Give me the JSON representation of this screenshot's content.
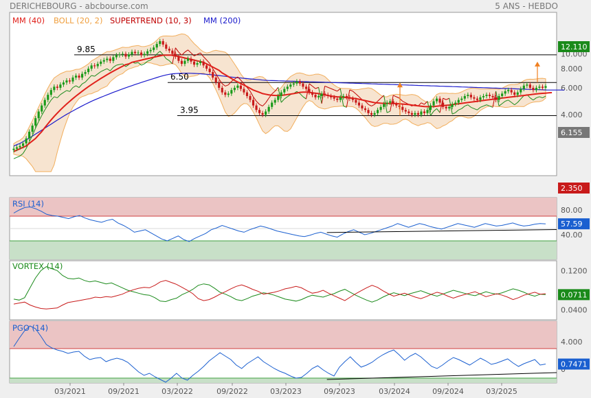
{
  "header": {
    "left": "DERICHEBOURG - abcbourse.com",
    "right": "5 ANS - HEBDO"
  },
  "legend": [
    {
      "label": "MM (40)",
      "color": "#e0201a"
    },
    {
      "label": "BOLL (20, 2)",
      "color": "#f0a040"
    },
    {
      "label": "SUPERTREND (10, 3)",
      "color": "#c00000"
    },
    {
      "label": "MM (200)",
      "color": "#1a1acc"
    }
  ],
  "colors": {
    "candle_up": "#1a9a1a",
    "candle_down": "#c81a1a",
    "rsi": "#1a5fd0",
    "vortex_plus": "#1a8a1a",
    "vortex_minus": "#c81a1a",
    "pgo": "#1a5fd0",
    "last_value_green": "#1a8a1a",
    "last_value_grey": "#777777",
    "last_value_red": "#c81a1a",
    "last_value_blue": "#1a5fd0"
  },
  "x_ticks": [
    "03/2021",
    "09/2021",
    "03/2022",
    "09/2022",
    "03/2023",
    "09/2023",
    "03/2024",
    "09/2024",
    "03/2025"
  ],
  "chart_data": [
    {
      "name": "price",
      "type": "candlestick",
      "scale": "log",
      "ylim": [
        1.6,
        15.5
      ],
      "ticks": [
        "10.000",
        "8.000",
        "6.000",
        "4.000"
      ],
      "tags": [
        {
          "text": "12.110",
          "type": "green"
        },
        {
          "text": "6.155",
          "type": "grey"
        },
        {
          "text": "2.350",
          "type": "red"
        }
      ],
      "levels": [
        {
          "label": "9.85",
          "value": 9.85
        },
        {
          "label": "6.50",
          "value": 6.5
        },
        {
          "label": "3.95",
          "value": 3.95
        }
      ],
      "close": [
        2.4,
        2.45,
        2.5,
        2.6,
        2.8,
        3.1,
        3.4,
        3.8,
        4.2,
        4.6,
        5.0,
        5.4,
        5.8,
        6.1,
        6.0,
        6.3,
        6.5,
        6.7,
        6.6,
        7.0,
        7.2,
        7.0,
        7.4,
        7.6,
        8.0,
        8.4,
        8.3,
        8.6,
        8.9,
        9.1,
        9.3,
        9.0,
        9.5,
        9.8,
        9.9,
        10.0,
        9.6,
        9.9,
        10.3,
        10.1,
        10.2,
        9.8,
        10.0,
        10.4,
        10.6,
        11.0,
        11.6,
        12.1,
        11.5,
        10.8,
        10.5,
        10.0,
        9.6,
        9.0,
        8.6,
        9.0,
        9.3,
        8.9,
        8.5,
        8.7,
        8.9,
        8.4,
        8.0,
        7.6,
        7.0,
        6.5,
        6.0,
        5.6,
        5.4,
        5.5,
        5.8,
        6.0,
        6.2,
        5.9,
        5.6,
        5.3,
        5.0,
        4.6,
        4.3,
        4.1,
        4.0,
        4.2,
        4.5,
        4.8,
        5.0,
        5.3,
        5.6,
        5.9,
        6.1,
        6.3,
        6.4,
        6.6,
        6.4,
        6.1,
        5.9,
        5.6,
        5.4,
        5.2,
        5.3,
        5.5,
        5.4,
        5.3,
        5.2,
        5.1,
        5.0,
        5.2,
        5.3,
        5.2,
        5.1,
        5.0,
        4.8,
        4.6,
        4.4,
        4.3,
        4.1,
        4.0,
        4.1,
        4.3,
        4.5,
        4.7,
        4.8,
        4.9,
        4.7,
        4.6,
        4.5,
        4.3,
        4.2,
        4.1,
        4.0,
        4.1,
        4.0,
        4.2,
        4.1,
        4.3,
        4.6,
        4.9,
        5.1,
        4.8,
        4.5,
        4.4,
        4.5,
        4.7,
        4.8,
        5.0,
        5.1,
        5.3,
        5.4,
        5.2,
        5.1,
        5.0,
        5.2,
        5.3,
        5.4,
        5.3,
        5.2,
        5.0,
        5.3,
        5.5,
        5.7,
        5.8,
        5.6,
        5.4,
        5.6,
        5.9,
        6.2,
        6.3,
        6.0,
        5.8,
        6.0,
        6.1,
        6.0,
        6.155
      ],
      "mm40": [
        2.3,
        2.35,
        2.4,
        2.45,
        2.5,
        2.6,
        2.7,
        2.8,
        2.95,
        3.1,
        3.3,
        3.5,
        3.7,
        3.9,
        4.1,
        4.3,
        4.5,
        4.7,
        4.9,
        5.1,
        5.3,
        5.5,
        5.7,
        5.9,
        6.1,
        6.3,
        6.5,
        6.7,
        6.9,
        7.1,
        7.3,
        7.5,
        7.7,
        7.9,
        8.1,
        8.3,
        8.5,
        8.6,
        8.8,
        8.9,
        9.0,
        9.1,
        9.2,
        9.3,
        9.4,
        9.5,
        9.6,
        9.7,
        9.8,
        9.8,
        9.8,
        9.8,
        9.7,
        9.6,
        9.5,
        9.4,
        9.3,
        9.2,
        9.1,
        9.0,
        8.9,
        8.8,
        8.6,
        8.4,
        8.2,
        8.0,
        7.8,
        7.5,
        7.3,
        7.1,
        6.9,
        6.7,
        6.55,
        6.4,
        6.25,
        6.1,
        5.95,
        5.8,
        5.7,
        5.6,
        5.5,
        5.45,
        5.4,
        5.37,
        5.35,
        5.35,
        5.36,
        5.38,
        5.42,
        5.46,
        5.5,
        5.55,
        5.6,
        5.62,
        5.62,
        5.6,
        5.57,
        5.53,
        5.5,
        5.45,
        5.4,
        5.35,
        5.3,
        5.27,
        5.24,
        5.22,
        5.2,
        5.18,
        5.16,
        5.13,
        5.1,
        5.05,
        5.0,
        4.95,
        4.9,
        4.85,
        4.8,
        4.78,
        4.76,
        4.75,
        4.74,
        4.74,
        4.74,
        4.73,
        4.72,
        4.7,
        4.68,
        4.66,
        4.63,
        4.6,
        4.57,
        4.55,
        4.53,
        4.52,
        4.52,
        4.53,
        4.55,
        4.57,
        4.59,
        4.61,
        4.63,
        4.66,
        4.69,
        4.72,
        4.75,
        4.78,
        4.81,
        4.84,
        4.87,
        4.9,
        4.93,
        4.96,
        4.99,
        5.02,
        5.05,
        5.08,
        5.11,
        5.14,
        5.17,
        5.2,
        5.23,
        5.26,
        5.29,
        5.32,
        5.35,
        5.38,
        5.41,
        5.44,
        5.47,
        5.5,
        5.52,
        5.54,
        5.56,
        5.58
      ],
      "mm200": [
        2.5,
        2.55,
        2.6,
        2.67,
        2.74,
        2.82,
        2.9,
        2.99,
        3.08,
        3.17,
        3.27,
        3.37,
        3.47,
        3.58,
        3.69,
        3.8,
        3.91,
        4.02,
        4.13,
        4.24,
        4.35,
        4.46,
        4.57,
        4.68,
        4.79,
        4.9,
        5.0,
        5.1,
        5.2,
        5.3,
        5.4,
        5.5,
        5.6,
        5.7,
        5.8,
        5.9,
        6.0,
        6.1,
        6.2,
        6.3,
        6.4,
        6.5,
        6.6,
        6.7,
        6.8,
        6.9,
        7.0,
        7.1,
        7.2,
        7.28,
        7.35,
        7.4,
        7.43,
        7.45,
        7.46,
        7.47,
        7.47,
        7.46,
        7.45,
        7.43,
        7.41,
        7.38,
        7.35,
        7.32,
        7.29,
        7.25,
        7.21,
        7.17,
        7.13,
        7.09,
        7.05,
        7.01,
        6.98,
        6.95,
        6.92,
        6.89,
        6.86,
        6.83,
        6.8,
        6.77,
        6.74,
        6.72,
        6.7,
        6.69,
        6.68,
        6.67,
        6.66,
        6.65,
        6.64,
        6.63,
        6.62,
        6.61,
        6.6,
        6.59,
        6.58,
        6.57,
        6.56,
        6.55,
        6.54,
        6.53,
        6.52,
        6.51,
        6.5,
        6.49,
        6.48,
        6.47,
        6.46,
        6.45,
        6.44,
        6.43,
        6.42,
        6.41,
        6.4,
        6.39,
        6.38,
        6.37,
        6.36,
        6.35,
        6.34,
        6.33,
        6.32,
        6.31,
        6.3,
        6.29,
        6.28,
        6.27,
        6.26,
        6.25,
        6.24,
        6.23,
        6.22,
        6.21,
        6.2,
        6.19,
        6.18,
        6.17,
        6.16,
        6.15,
        6.14,
        6.13,
        6.12,
        6.11,
        6.1,
        6.09,
        6.08,
        6.07,
        6.06,
        6.05,
        6.04,
        6.03,
        6.02,
        6.01,
        6.0,
        5.99,
        5.98,
        5.97,
        5.96,
        5.95,
        5.94,
        5.93,
        5.92,
        5.91,
        5.9,
        5.89,
        5.88,
        5.87,
        5.86,
        5.85,
        5.84,
        5.83,
        5.82,
        5.81,
        5.8,
        5.8,
        5.8,
        5.8,
        5.8,
        5.8
      ]
    },
    {
      "name": "rsi",
      "type": "line",
      "label": "RSI (14)",
      "ylim": [
        0,
        100
      ],
      "ticks": [
        "80.00",
        "40.00"
      ],
      "bands": [
        70,
        30
      ],
      "tag": "57.59",
      "trend": [
        [
          0.58,
          43.5
        ],
        [
          1.0,
          48.3
        ]
      ],
      "values": [
        75,
        80,
        84,
        85,
        82,
        78,
        73,
        71,
        70,
        68,
        66,
        69,
        71,
        67,
        64,
        62,
        60,
        63,
        65,
        59,
        55,
        50,
        44,
        46,
        48,
        43,
        38,
        33,
        30,
        34,
        38,
        32,
        29,
        34,
        38,
        42,
        48,
        51,
        55,
        52,
        49,
        46,
        44,
        48,
        51,
        54,
        52,
        49,
        46,
        44,
        42,
        40,
        38,
        37,
        39,
        42,
        44,
        41,
        38,
        36,
        41,
        45,
        48,
        44,
        40,
        42,
        45,
        48,
        51,
        54,
        58,
        55,
        52,
        55,
        58,
        56,
        53,
        51,
        49,
        52,
        55,
        58,
        56,
        54,
        52,
        55,
        58,
        56,
        54,
        55,
        57,
        59,
        56,
        54,
        55,
        57,
        58,
        57.59
      ]
    },
    {
      "name": "vortex",
      "type": "line",
      "label": "VORTEX (14)",
      "ylim": [
        0.02,
        0.14
      ],
      "ticks": [
        "0.1200",
        "0.0400"
      ],
      "tag": "0.0711",
      "series": [
        {
          "values": [
            0.062,
            0.06,
            0.065,
            0.085,
            0.105,
            0.12,
            0.128,
            0.124,
            0.12,
            0.11,
            0.104,
            0.103,
            0.105,
            0.1,
            0.097,
            0.099,
            0.096,
            0.093,
            0.095,
            0.09,
            0.085,
            0.08,
            0.077,
            0.074,
            0.071,
            0.07,
            0.065,
            0.058,
            0.057,
            0.061,
            0.064,
            0.071,
            0.076,
            0.082,
            0.09,
            0.093,
            0.091,
            0.084,
            0.076,
            0.072,
            0.067,
            0.061,
            0.059,
            0.063,
            0.068,
            0.071,
            0.075,
            0.073,
            0.07,
            0.066,
            0.062,
            0.06,
            0.058,
            0.061,
            0.066,
            0.07,
            0.068,
            0.066,
            0.07,
            0.073,
            0.078,
            0.082,
            0.076,
            0.07,
            0.065,
            0.06,
            0.056,
            0.06,
            0.066,
            0.071,
            0.075,
            0.072,
            0.069,
            0.073,
            0.076,
            0.079,
            0.075,
            0.071,
            0.068,
            0.072,
            0.076,
            0.08,
            0.077,
            0.074,
            0.071,
            0.069,
            0.073,
            0.077,
            0.074,
            0.072,
            0.075,
            0.079,
            0.083,
            0.08,
            0.076,
            0.071,
            0.068,
            0.072,
            0.0711
          ]
        },
        {
          "values": [
            0.052,
            0.054,
            0.056,
            0.05,
            0.046,
            0.043,
            0.042,
            0.043,
            0.044,
            0.05,
            0.055,
            0.057,
            0.059,
            0.061,
            0.063,
            0.066,
            0.065,
            0.067,
            0.066,
            0.069,
            0.072,
            0.077,
            0.081,
            0.084,
            0.086,
            0.085,
            0.09,
            0.097,
            0.1,
            0.096,
            0.092,
            0.086,
            0.08,
            0.073,
            0.063,
            0.059,
            0.061,
            0.066,
            0.072,
            0.077,
            0.083,
            0.088,
            0.091,
            0.087,
            0.082,
            0.078,
            0.072,
            0.074,
            0.076,
            0.079,
            0.083,
            0.085,
            0.088,
            0.085,
            0.079,
            0.074,
            0.076,
            0.08,
            0.074,
            0.069,
            0.064,
            0.059,
            0.066,
            0.073,
            0.079,
            0.085,
            0.09,
            0.086,
            0.079,
            0.073,
            0.068,
            0.071,
            0.074,
            0.07,
            0.066,
            0.063,
            0.067,
            0.072,
            0.076,
            0.073,
            0.068,
            0.064,
            0.068,
            0.071,
            0.074,
            0.077,
            0.072,
            0.067,
            0.07,
            0.073,
            0.07,
            0.066,
            0.061,
            0.065,
            0.07,
            0.073,
            0.076,
            0.072,
            0.073
          ]
        }
      ]
    },
    {
      "name": "pgo",
      "type": "line",
      "label": "PGO (14)",
      "ylim": [
        -2,
        7
      ],
      "ticks": [
        "4.000",
        "0"
      ],
      "bands": [
        3,
        -1.3
      ],
      "tag": "0.7471",
      "trend": [
        [
          0.58,
          -1.5
        ],
        [
          1.0,
          -0.5
        ]
      ],
      "values": [
        3.3,
        4.5,
        5.6,
        6.3,
        5.9,
        4.8,
        3.6,
        3.1,
        2.8,
        2.6,
        2.3,
        2.5,
        2.6,
        1.9,
        1.4,
        1.6,
        1.7,
        1.1,
        1.4,
        1.6,
        1.4,
        1.0,
        0.3,
        -0.4,
        -0.9,
        -0.6,
        -1.1,
        -1.5,
        -1.9,
        -1.3,
        -0.6,
        -1.3,
        -1.6,
        -0.9,
        -0.3,
        0.4,
        1.2,
        1.8,
        2.4,
        1.9,
        1.4,
        0.6,
        0.1,
        0.8,
        1.3,
        1.8,
        1.1,
        0.6,
        0.1,
        -0.3,
        -0.6,
        -1.0,
        -1.3,
        -1.2,
        -0.6,
        0.1,
        0.5,
        -0.1,
        -0.6,
        -1.0,
        0.3,
        1.1,
        1.8,
        1.0,
        0.3,
        0.6,
        1.0,
        1.6,
        2.1,
        2.5,
        2.8,
        2.1,
        1.3,
        1.9,
        2.3,
        1.8,
        1.1,
        0.4,
        0.1,
        0.6,
        1.2,
        1.7,
        1.4,
        1.0,
        0.6,
        1.1,
        1.6,
        1.2,
        0.7,
        0.9,
        1.2,
        1.5,
        0.9,
        0.4,
        0.8,
        1.1,
        1.4,
        0.6,
        0.7471
      ]
    }
  ]
}
